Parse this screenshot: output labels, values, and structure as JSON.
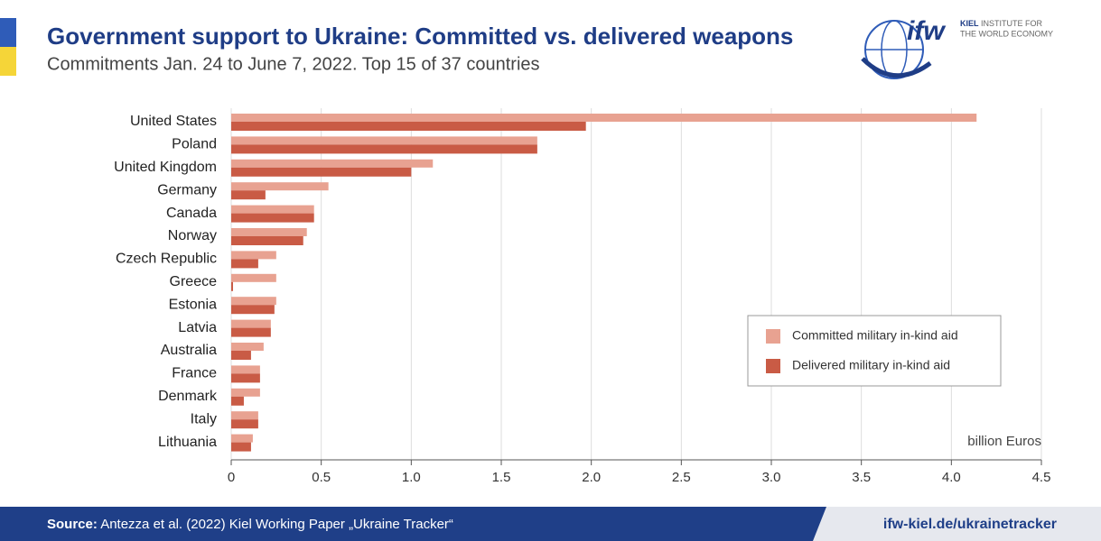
{
  "chart_data": {
    "type": "bar",
    "orientation": "horizontal",
    "title": "Government support to Ukraine: Committed vs. delivered weapons",
    "subtitle": "Commitments Jan. 24 to June 7, 2022. Top 15 of 37 countries",
    "categories": [
      "United States",
      "Poland",
      "United Kingdom",
      "Germany",
      "Canada",
      "Norway",
      "Czech Republic",
      "Greece",
      "Estonia",
      "Latvia",
      "Australia",
      "France",
      "Denmark",
      "Italy",
      "Lithuania"
    ],
    "series": [
      {
        "name": "Committed military in-kind aid",
        "color": "#e8a291",
        "values": [
          4.14,
          1.7,
          1.12,
          0.54,
          0.46,
          0.42,
          0.25,
          0.25,
          0.25,
          0.22,
          0.18,
          0.16,
          0.16,
          0.15,
          0.12
        ]
      },
      {
        "name": "Delivered military in-kind aid",
        "color": "#c95b45",
        "values": [
          1.97,
          1.7,
          1.0,
          0.19,
          0.46,
          0.4,
          0.15,
          0.01,
          0.24,
          0.22,
          0.11,
          0.16,
          0.07,
          0.15,
          0.11
        ]
      }
    ],
    "x_label": "billion Euros",
    "xlim": [
      0,
      4.5
    ],
    "xticks": [
      0,
      0.5,
      {
        "value": 1,
        "label": "1.0"
      },
      1.5,
      {
        "value": 2,
        "label": "2.0"
      },
      2.5,
      {
        "value": 3,
        "label": "3.0"
      },
      3.5,
      {
        "value": 4,
        "label": "4.0"
      },
      4.5
    ],
    "grid": true,
    "legend": "right"
  },
  "logo": {
    "mark": "ifw",
    "bold": "KIEL",
    "line1": "INSTITUTE FOR",
    "line2": "THE WORLD ECONOMY"
  },
  "footer": {
    "source_label": "Source:",
    "source_text": "Antezza et al. (2022) Kiel Working Paper „Ukraine Tracker“",
    "link": "ifw-kiel.de/ukrainetracker"
  }
}
